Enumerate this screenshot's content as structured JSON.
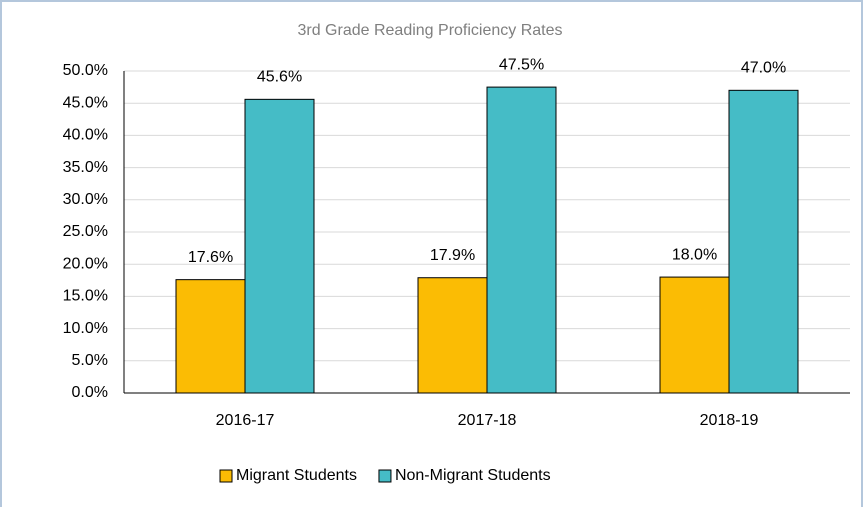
{
  "chart_data": {
    "type": "bar",
    "title": "3rd Grade Reading Proficiency Rates",
    "categories": [
      "2016-17",
      "2017-18",
      "2018-19"
    ],
    "series": [
      {
        "name": "Migrant Students",
        "color": "#fbbc04",
        "values": [
          17.6,
          17.9,
          18.0
        ],
        "value_labels": [
          "17.6%",
          "17.9%",
          "18.0%"
        ]
      },
      {
        "name": "Non-Migrant Students",
        "color": "#45bcc6",
        "values": [
          45.6,
          47.5,
          47.0
        ],
        "value_labels": [
          "45.6%",
          "47.5%",
          "47.0%"
        ]
      }
    ],
    "ylim": [
      0,
      50
    ],
    "yticks": [
      {
        "value": 0,
        "label": "0.0%"
      },
      {
        "value": 5,
        "label": "5.0%"
      },
      {
        "value": 10,
        "label": "10.0%"
      },
      {
        "value": 15,
        "label": "15.0%"
      },
      {
        "value": 20,
        "label": "20.0%"
      },
      {
        "value": 25,
        "label": "25.0%"
      },
      {
        "value": 30,
        "label": "30.0%"
      },
      {
        "value": 35,
        "label": "35.0%"
      },
      {
        "value": 40,
        "label": "40.0%"
      },
      {
        "value": 45,
        "label": "45.0%"
      },
      {
        "value": 50,
        "label": "50.0%"
      }
    ],
    "grid": true,
    "legend": "bottom"
  }
}
